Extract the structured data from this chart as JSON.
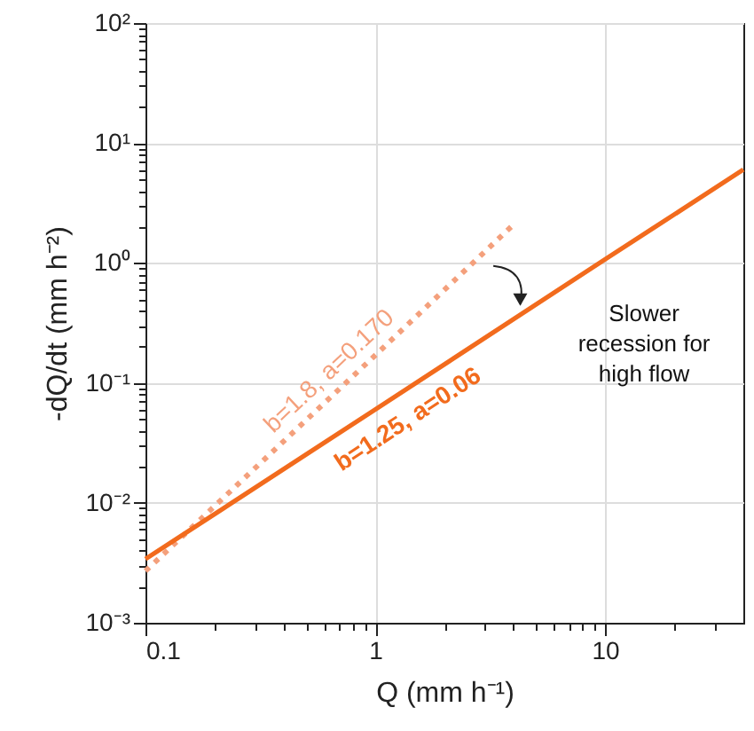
{
  "chart_data": {
    "type": "line",
    "xlabel": "Q (mm h⁻¹)",
    "ylabel": "-dQ/dt (mm h⁻²)",
    "log": "xy",
    "grid": true,
    "marker": "none",
    "xlim": [
      0.1,
      40
    ],
    "ylim": [
      0.001,
      100
    ],
    "xticks": [
      0.1,
      {
        "value": 0.2,
        "label": null
      },
      {
        "value": 0.3,
        "label": null
      },
      {
        "value": 0.4,
        "label": null
      },
      {
        "value": 0.5,
        "label": null
      },
      {
        "value": 0.6,
        "label": null
      },
      {
        "value": 0.7,
        "label": null
      },
      {
        "value": 0.8,
        "label": null
      },
      {
        "value": 0.9,
        "label": null
      },
      1,
      {
        "value": 2,
        "label": null
      },
      {
        "value": 3,
        "label": null
      },
      {
        "value": 4,
        "label": null
      },
      {
        "value": 5,
        "label": null
      },
      {
        "value": 6,
        "label": null
      },
      {
        "value": 7,
        "label": null
      },
      {
        "value": 8,
        "label": null
      },
      {
        "value": 9,
        "label": null
      },
      10,
      {
        "value": 20,
        "label": null
      },
      {
        "value": 30,
        "label": null
      }
    ],
    "yticks": [
      {
        "value": 0.001,
        "label": "10⁻³"
      },
      {
        "value": 0.002,
        "label": null
      },
      {
        "value": 0.003,
        "label": null
      },
      {
        "value": 0.004,
        "label": null
      },
      {
        "value": 0.005,
        "label": null
      },
      {
        "value": 0.006,
        "label": null
      },
      {
        "value": 0.007,
        "label": null
      },
      {
        "value": 0.008,
        "label": null
      },
      {
        "value": 0.009,
        "label": null
      },
      {
        "value": 0.01,
        "label": "10⁻²"
      },
      {
        "value": 0.02,
        "label": null
      },
      {
        "value": 0.03,
        "label": null
      },
      {
        "value": 0.04,
        "label": null
      },
      {
        "value": 0.05,
        "label": null
      },
      {
        "value": 0.06,
        "label": null
      },
      {
        "value": 0.07,
        "label": null
      },
      {
        "value": 0.08,
        "label": null
      },
      {
        "value": 0.09,
        "label": null
      },
      {
        "value": 0.1,
        "label": "10⁻¹"
      },
      {
        "value": 0.2,
        "label": null
      },
      {
        "value": 0.3,
        "label": null
      },
      {
        "value": 0.4,
        "label": null
      },
      {
        "value": 0.5,
        "label": null
      },
      {
        "value": 0.6,
        "label": null
      },
      {
        "value": 0.7,
        "label": null
      },
      {
        "value": 0.8,
        "label": null
      },
      {
        "value": 0.9,
        "label": null
      },
      {
        "value": 1,
        "label": "10⁰"
      },
      {
        "value": 2,
        "label": null
      },
      {
        "value": 3,
        "label": null
      },
      {
        "value": 4,
        "label": null
      },
      {
        "value": 5,
        "label": null
      },
      {
        "value": 6,
        "label": null
      },
      {
        "value": 7,
        "label": null
      },
      {
        "value": 8,
        "label": null
      },
      {
        "value": 9,
        "label": null
      },
      {
        "value": 10,
        "label": "10¹"
      },
      {
        "value": 20,
        "label": null
      },
      {
        "value": 30,
        "label": null
      },
      {
        "value": 40,
        "label": null
      },
      {
        "value": 50,
        "label": null
      },
      {
        "value": 60,
        "label": null
      },
      {
        "value": 70,
        "label": null
      },
      {
        "value": 80,
        "label": null
      },
      {
        "value": 90,
        "label": null
      },
      {
        "value": 100,
        "label": "10²"
      }
    ],
    "series": [
      {
        "name": "b=1.8, a=0.170",
        "color": "#f4a07c",
        "line_style": "dotted",
        "x": [
          0.1,
          1,
          3.9
        ],
        "values": [
          0.0027,
          0.17,
          2.0
        ]
      },
      {
        "name": "b=1.25, a=0.06",
        "color": "#f26b1d",
        "line_style": "solid",
        "x": [
          0.1,
          1,
          10,
          40
        ],
        "values": [
          0.0034,
          0.06,
          1.07,
          6.0
        ]
      }
    ],
    "annotations": [
      "Slower recession for high flow"
    ]
  }
}
